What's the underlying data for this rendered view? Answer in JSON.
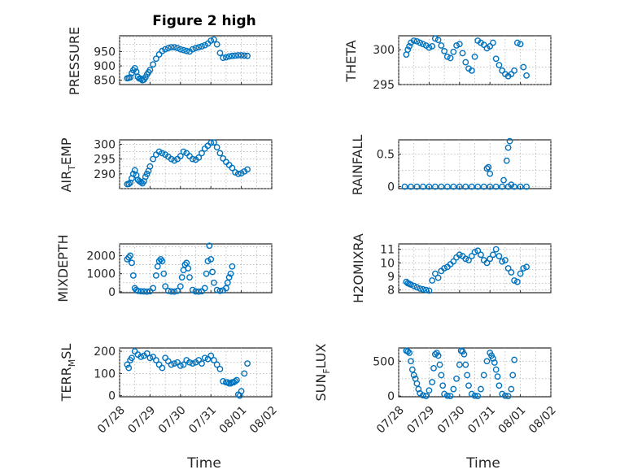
{
  "figure": {
    "title": "Figure 2 high",
    "marker_color": "#0072BD"
  },
  "chart_data": [
    {
      "type": "scatter",
      "id": "pressure",
      "title": "Figure 2 high",
      "xlabel": "",
      "ylabel": "PRESSURE",
      "xlim": [
        "07/28",
        "08/02"
      ],
      "ylim": [
        835,
        1005
      ],
      "yticks": [
        850,
        900,
        950
      ],
      "xticks": [
        "07/28",
        "07/29",
        "07/29",
        "07/30",
        "07/31",
        "08/01",
        "08/02"
      ],
      "grid": true,
      "series": [
        {
          "x": [
            0.25,
            0.3,
            0.35,
            0.4,
            0.45,
            0.5,
            0.55,
            0.6,
            0.65,
            0.7,
            0.75,
            0.8,
            0.85,
            0.9,
            0.95,
            1.0,
            1.1,
            1.2,
            1.3,
            1.4,
            1.5,
            1.6,
            1.7,
            1.8,
            1.9,
            2.0,
            2.1,
            2.2,
            2.3,
            2.4,
            2.5,
            2.6,
            2.7,
            2.8,
            2.9,
            3.0,
            3.1,
            3.2,
            3.3,
            3.4,
            3.5,
            3.6,
            3.7,
            3.8,
            3.9,
            4.0,
            4.1,
            4.2
          ],
          "y": [
            857,
            858,
            860,
            875,
            885,
            892,
            880,
            862,
            856,
            855,
            850,
            852,
            860,
            870,
            878,
            886,
            905,
            925,
            940,
            952,
            958,
            962,
            965,
            965,
            962,
            958,
            955,
            952,
            950,
            958,
            962,
            965,
            968,
            972,
            978,
            988,
            992,
            975,
            945,
            928,
            930,
            933,
            935,
            936,
            937,
            937,
            936,
            935
          ]
        }
      ]
    },
    {
      "type": "scatter",
      "id": "theta",
      "xlabel": "",
      "ylabel": "THETA",
      "xlim": [
        "07/28",
        "08/02"
      ],
      "ylim": [
        295,
        302
      ],
      "yticks": [
        295,
        300
      ],
      "grid": true,
      "series": [
        {
          "x": [
            0.25,
            0.3,
            0.35,
            0.4,
            0.5,
            0.6,
            0.7,
            0.8,
            0.9,
            1.0,
            1.1,
            1.2,
            1.3,
            1.4,
            1.5,
            1.6,
            1.7,
            1.8,
            1.9,
            2.0,
            2.1,
            2.2,
            2.3,
            2.4,
            2.5,
            2.6,
            2.7,
            2.8,
            2.9,
            3.0,
            3.1,
            3.2,
            3.3,
            3.4,
            3.5,
            3.6,
            3.7,
            3.8,
            3.9,
            4.0,
            4.1,
            4.2
          ],
          "y": [
            299.3,
            300,
            300.5,
            301,
            301.3,
            301.2,
            301,
            300.8,
            300.6,
            300.3,
            300.5,
            301.6,
            301.4,
            300.6,
            299.8,
            299,
            298.8,
            299.7,
            300.6,
            300.8,
            299.5,
            298.2,
            297.3,
            297,
            299,
            301.3,
            301,
            300.7,
            300.2,
            300.5,
            301,
            298.7,
            297.8,
            297,
            296.5,
            296.2,
            296.5,
            297,
            301,
            300.8,
            297.5,
            296.3
          ]
        }
      ]
    },
    {
      "type": "scatter",
      "id": "air_temp",
      "xlabel": "",
      "ylabel": "AIR_TEMP",
      "xlim": [
        "07/28",
        "08/02"
      ],
      "ylim": [
        285,
        301.5
      ],
      "yticks": [
        290,
        295,
        300
      ],
      "grid": true,
      "series": [
        {
          "x": [
            0.25,
            0.3,
            0.35,
            0.4,
            0.45,
            0.5,
            0.55,
            0.6,
            0.65,
            0.7,
            0.75,
            0.8,
            0.85,
            0.9,
            0.95,
            1.0,
            1.1,
            1.2,
            1.3,
            1.4,
            1.5,
            1.6,
            1.7,
            1.8,
            1.9,
            2.0,
            2.1,
            2.2,
            2.3,
            2.4,
            2.5,
            2.6,
            2.7,
            2.8,
            2.9,
            3.0,
            3.1,
            3.2,
            3.3,
            3.4,
            3.5,
            3.6,
            3.7,
            3.8,
            3.9,
            4.0,
            4.1,
            4.2
          ],
          "y": [
            286.5,
            286.6,
            287,
            288.5,
            290,
            291.2,
            289.5,
            288,
            287.5,
            287.2,
            286.8,
            287.5,
            289,
            290,
            291,
            292.5,
            295,
            296.5,
            297.5,
            297,
            296.5,
            295.8,
            295,
            294.5,
            295,
            296,
            297.5,
            297,
            296,
            295,
            294.8,
            295.5,
            297,
            298.5,
            299.5,
            300.5,
            300.6,
            299,
            297,
            295.2,
            294,
            293,
            292,
            290.5,
            290,
            290.2,
            290.8,
            291.5
          ]
        }
      ]
    },
    {
      "type": "scatter",
      "id": "rainfall",
      "xlabel": "",
      "ylabel": "RAINFALL",
      "xlim": [
        "07/28",
        "08/02"
      ],
      "ylim": [
        -0.03,
        0.72
      ],
      "yticks": [
        0,
        0.5
      ],
      "grid": true,
      "series": [
        {
          "x": [
            0.2,
            0.4,
            0.6,
            0.8,
            1.0,
            1.2,
            1.4,
            1.6,
            1.8,
            2.0,
            2.2,
            2.4,
            2.6,
            2.8,
            3.0,
            3.2,
            3.4,
            3.6,
            3.8,
            4.0,
            4.2,
            2.9,
            2.95,
            3.0,
            3.45,
            3.55,
            3.6,
            3.65,
            3.7
          ],
          "y": [
            0,
            0,
            0,
            0,
            0,
            0,
            0,
            0,
            0,
            0,
            0,
            0,
            0,
            0,
            0,
            0,
            0,
            0,
            0,
            0,
            0,
            0.28,
            0.3,
            0.2,
            0.1,
            0.4,
            0.6,
            0.7,
            0.03
          ]
        }
      ]
    },
    {
      "type": "scatter",
      "id": "mixdepth",
      "xlabel": "",
      "ylabel": "MIXDEPTH",
      "xlim": [
        "07/28",
        "08/02"
      ],
      "ylim": [
        -50,
        2650
      ],
      "yticks": [
        0,
        1000,
        2000
      ],
      "grid": true,
      "series": [
        {
          "x": [
            0.25,
            0.3,
            0.35,
            0.4,
            0.45,
            0.5,
            0.55,
            0.6,
            0.7,
            0.8,
            0.9,
            1.0,
            1.1,
            1.2,
            1.25,
            1.3,
            1.35,
            1.4,
            1.45,
            1.5,
            1.6,
            1.7,
            1.8,
            1.9,
            2.0,
            2.05,
            2.1,
            2.15,
            2.2,
            2.25,
            2.3,
            2.4,
            2.5,
            2.6,
            2.7,
            2.8,
            2.85,
            2.9,
            2.95,
            3.0,
            3.05,
            3.1,
            3.2,
            3.3,
            3.4,
            3.5,
            3.55,
            3.6,
            3.65,
            3.7
          ],
          "y": [
            1800,
            1900,
            2000,
            1600,
            900,
            200,
            100,
            50,
            30,
            20,
            10,
            30,
            200,
            900,
            1400,
            1700,
            1800,
            1700,
            1000,
            300,
            50,
            20,
            10,
            50,
            300,
            800,
            1200,
            1500,
            1600,
            1300,
            800,
            100,
            20,
            10,
            30,
            200,
            1000,
            1700,
            2550,
            1800,
            1100,
            500,
            100,
            50,
            80,
            200,
            500,
            800,
            1000,
            1400
          ]
        }
      ]
    },
    {
      "type": "scatter",
      "id": "h2omixra",
      "xlabel": "",
      "ylabel": "H2OMIXRA",
      "xlim": [
        "07/28",
        "08/02"
      ],
      "ylim": [
        7.8,
        11.4
      ],
      "yticks": [
        8,
        9,
        10,
        11
      ],
      "grid": true,
      "series": [
        {
          "x": [
            0.25,
            0.3,
            0.35,
            0.4,
            0.5,
            0.6,
            0.7,
            0.8,
            0.9,
            1.0,
            1.1,
            1.2,
            1.3,
            1.4,
            1.5,
            1.6,
            1.7,
            1.8,
            1.9,
            2.0,
            2.1,
            2.2,
            2.3,
            2.4,
            2.5,
            2.6,
            2.7,
            2.8,
            2.9,
            3.0,
            3.1,
            3.2,
            3.3,
            3.4,
            3.5,
            3.6,
            3.7,
            3.8,
            3.9,
            4.0,
            4.1,
            4.2
          ],
          "y": [
            8.6,
            8.5,
            8.45,
            8.4,
            8.3,
            8.2,
            8.1,
            8.05,
            8.0,
            7.95,
            8.7,
            9.2,
            8.9,
            9.4,
            9.6,
            9.7,
            9.9,
            10.1,
            10.4,
            10.6,
            10.5,
            10.3,
            10.2,
            10.5,
            10.8,
            10.9,
            10.6,
            10.2,
            10.0,
            10.3,
            10.6,
            11.0,
            10.5,
            10.1,
            10.2,
            9.6,
            9.3,
            8.7,
            8.6,
            9.2,
            9.6,
            9.7
          ]
        }
      ]
    },
    {
      "type": "scatter",
      "id": "terr_msl",
      "xlabel": "Time",
      "ylabel": "TERR_MSL",
      "xlim": [
        "07/28",
        "08/02"
      ],
      "ylim": [
        -5,
        215
      ],
      "yticks": [
        0,
        100,
        200
      ],
      "grid": true,
      "series": [
        {
          "x": [
            0.25,
            0.3,
            0.35,
            0.4,
            0.5,
            0.6,
            0.7,
            0.8,
            0.9,
            1.0,
            1.1,
            1.2,
            1.3,
            1.4,
            1.5,
            1.6,
            1.7,
            1.8,
            1.9,
            2.0,
            2.1,
            2.2,
            2.3,
            2.4,
            2.5,
            2.6,
            2.7,
            2.8,
            2.9,
            3.0,
            3.1,
            3.2,
            3.3,
            3.4,
            3.5,
            3.55,
            3.6,
            3.65,
            3.7,
            3.75,
            3.8,
            3.85,
            3.9,
            3.95,
            4.0,
            4.1,
            4.2
          ],
          "y": [
            140,
            125,
            160,
            170,
            200,
            185,
            175,
            180,
            190,
            170,
            175,
            160,
            140,
            125,
            170,
            155,
            140,
            145,
            150,
            135,
            140,
            160,
            150,
            145,
            150,
            160,
            145,
            170,
            165,
            180,
            160,
            140,
            120,
            65,
            60,
            60,
            55,
            55,
            60,
            60,
            65,
            70,
            5,
            0,
            20,
            100,
            145
          ]
        }
      ]
    },
    {
      "type": "scatter",
      "id": "sun_flux",
      "xlabel": "Time",
      "ylabel": "SUN_FLUX",
      "xlim": [
        "07/28",
        "08/02"
      ],
      "ylim": [
        -10,
        690
      ],
      "yticks": [
        0,
        500
      ],
      "grid": true,
      "series": [
        {
          "x": [
            0.25,
            0.3,
            0.35,
            0.4,
            0.45,
            0.5,
            0.55,
            0.6,
            0.65,
            0.7,
            0.8,
            0.9,
            1.0,
            1.1,
            1.15,
            1.2,
            1.25,
            1.3,
            1.35,
            1.4,
            1.45,
            1.5,
            1.6,
            1.7,
            1.8,
            1.9,
            2.0,
            2.05,
            2.1,
            2.15,
            2.2,
            2.25,
            2.3,
            2.4,
            2.5,
            2.6,
            2.7,
            2.8,
            2.9,
            3.0,
            3.05,
            3.1,
            3.15,
            3.2,
            3.25,
            3.3,
            3.4,
            3.5,
            3.6,
            3.7,
            3.75,
            3.8
          ],
          "y": [
            650,
            640,
            620,
            500,
            380,
            300,
            250,
            180,
            100,
            40,
            10,
            0,
            80,
            200,
            400,
            600,
            620,
            580,
            450,
            300,
            150,
            30,
            5,
            0,
            100,
            250,
            450,
            650,
            640,
            600,
            450,
            300,
            150,
            30,
            5,
            0,
            100,
            300,
            500,
            620,
            580,
            540,
            480,
            380,
            280,
            150,
            30,
            5,
            0,
            100,
            300,
            520
          ]
        }
      ]
    }
  ],
  "axes_labels": {
    "pressure": "PRESSURE",
    "theta": "THETA",
    "air_temp_main": "AIR",
    "air_temp_sub": "T",
    "air_temp_tail": "EMP",
    "rainfall": "RAINFALL",
    "mixdepth": "MIXDEPTH",
    "h2omixra": "H2OMIXRA",
    "terr_main": "TERR",
    "terr_sub": "M",
    "terr_tail": "SL",
    "sun_main": "SUN",
    "sun_sub": "F",
    "sun_tail": "LUX",
    "time_left": "Time",
    "time_right": "Time"
  },
  "date_ticks": [
    "07/28",
    "07/29",
    "07/30",
    "07/31",
    "08/01",
    "08/02"
  ]
}
